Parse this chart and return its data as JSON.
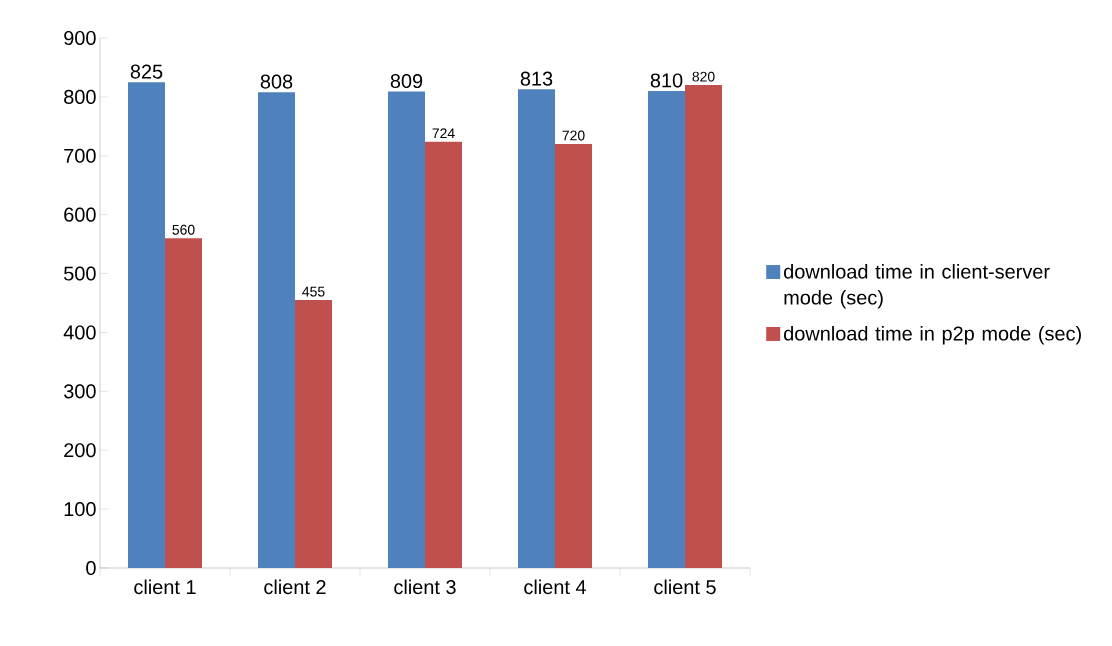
{
  "chart_data": {
    "type": "bar",
    "categories": [
      "client 1",
      "client 2",
      "client 3",
      "client 4",
      "client 5"
    ],
    "series": [
      {
        "name": "download time in client-server mode (sec)",
        "color": "#4f81bd",
        "values": [
          825,
          808,
          809,
          813,
          810
        ]
      },
      {
        "name": "download time in p2p mode (sec)",
        "color": "#c0504d",
        "values": [
          560,
          455,
          724,
          720,
          820
        ]
      }
    ],
    "ylim": [
      0,
      900
    ],
    "yticks": [
      0,
      100,
      200,
      300,
      400,
      500,
      600,
      700,
      800,
      900
    ],
    "data_labels": true,
    "legend": "right",
    "grid": false
  }
}
